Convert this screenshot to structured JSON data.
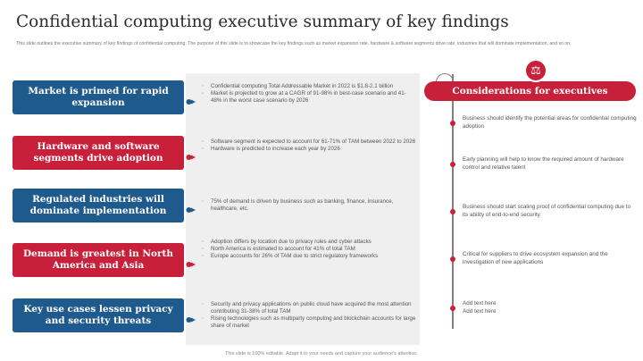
{
  "title": "Confidential computing executive summary of key findings",
  "subtitle": "This slide outlines the executive summary of key findings of confidential computing. The purpose of this slide is to showcase the key findings such as market expansion rate, hardware & software segments drive rate, industries that will dominate implementation, and so on.",
  "findings": [
    {
      "label": "Market is primed for rapid expansion",
      "color": "#1f5a8c",
      "bullets": [
        "Confidential computing Total Addressable Market in 2022 is $1.8-2.1 billion",
        "Market is projected to grow at a CAGR of 91-98% in best-case scenario and 41-48% in the worst case scenario by 2026"
      ]
    },
    {
      "label": "Hardware and software segments drive adoption",
      "color": "#c8203a",
      "bullets": [
        "Software segment is expected to account for 61-71% of TAM between 2022 to 2026",
        "Hardware is predicted to increase each year by 2026"
      ]
    },
    {
      "label": "Regulated industries will dominate implementation",
      "color": "#1f5a8c",
      "bullets": [
        "75% of demand is driven by business such as banking, finance, insurance, healthcare, etc."
      ]
    },
    {
      "label": "Demand is greatest in North America and Asia",
      "color": "#c8203a",
      "bullets": [
        "Adoption differs by location due to privacy rules and cyber attacks",
        "North America is estimated to account for 41% of total TAM",
        "Europe accounts for 26% of TAM due to strict regulatory frameworks"
      ]
    },
    {
      "label": "Key use cases lessen privacy and security threats",
      "color": "#1f5a8c",
      "bullets": [
        "Security and privacy applications on public cloud have acquired the most attention contributing 31-38% of total TAM",
        "Rising technologies such as multiparty computing and blockchain accounts for large share of market"
      ]
    }
  ],
  "considerations": {
    "heading": "Considerations for executives",
    "icon": "scales-icon",
    "items": [
      "Business should identify the potential areas for confidential computing adoption",
      "Early planning will help to know the required amount of hardware control and relative talent",
      "Business should start scaling proof of confidential computing due to its ability of end-to-end security",
      "Critical for suppliers to drive ecosystem expansion and the investigation of new applications",
      "Add text here\nAdd text here"
    ]
  },
  "footer": "This slide is 100% editable. Adapt it to your needs and capture your audience's attention."
}
